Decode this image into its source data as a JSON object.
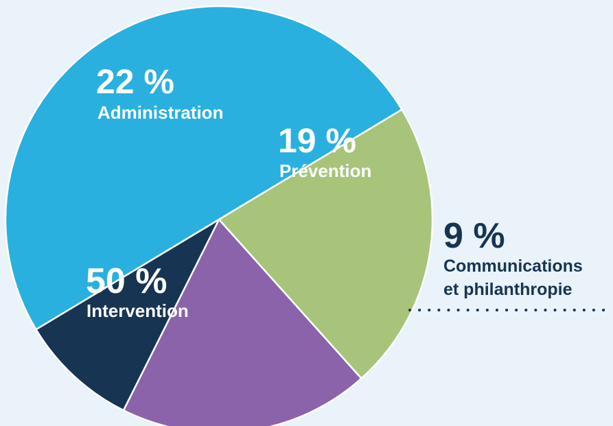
{
  "chart_data": {
    "type": "pie",
    "slices": [
      {
        "label": "Intervention",
        "value": 50,
        "display": "50 %",
        "color": "#29b0df"
      },
      {
        "label": "Administration",
        "value": 22,
        "display": "22 %",
        "color": "#a7c47a"
      },
      {
        "label": "Prévention",
        "value": 19,
        "display": "19 %",
        "color": "#8a63ab"
      },
      {
        "label_lines": [
          "Communications",
          "et philanthropie"
        ],
        "value": 9,
        "display": "9 %",
        "color": "#173553"
      }
    ],
    "label_color_inside": "#ffffff",
    "label_color_outside": "#173553",
    "background": "#eaf3fa"
  }
}
